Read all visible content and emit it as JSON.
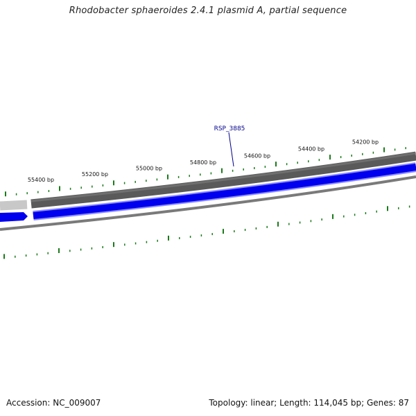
{
  "title": "Rhodobacter sphaeroides 2.4.1 plasmid A, partial sequence",
  "footer": {
    "accession": "Accession: NC_009007",
    "summary": "Topology: linear; Length: 114,045 bp; Genes: 87"
  },
  "colors": {
    "tick": "#1a7a1a",
    "forward_strand_dark": "#5a5a5a",
    "forward_strand_light": "#c8c8c8",
    "gene_fill": "#0000ee",
    "gene_outline": "#8a8aff",
    "inner_ring": "#7a7a7a",
    "gene_label": "#00008b"
  },
  "scale_labels": [
    "55400 bp",
    "55200 bp",
    "55000 bp",
    "54800 bp",
    "54600 bp",
    "54400 bp",
    "54200 bp"
  ],
  "genes": [
    {
      "label": "RSP_3885",
      "strand": "reverse"
    }
  ]
}
